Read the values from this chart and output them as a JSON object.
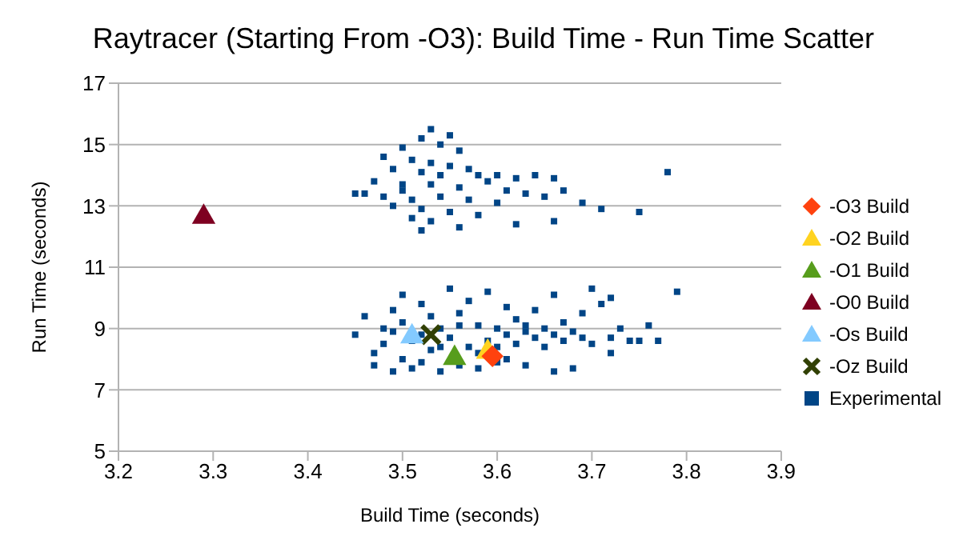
{
  "chart_data": {
    "type": "scatter",
    "title": "Raytracer (Starting From -O3): Build Time - Run Time Scatter",
    "xlabel": "Build Time (seconds)",
    "ylabel": "Run Time (seconds)",
    "xlim": [
      3.2,
      3.9
    ],
    "xticks": [
      3.2,
      3.3,
      3.4,
      3.5,
      3.6,
      3.7,
      3.8,
      3.9
    ],
    "ylim": [
      5,
      17
    ],
    "yticks": [
      5,
      7,
      9,
      11,
      13,
      15,
      17
    ],
    "grid": "y",
    "legend": "right",
    "series": [
      {
        "name": "-O3 Build",
        "color": "#ff420e",
        "marker": "diamond",
        "x": [
          3.595
        ],
        "values": [
          8.1
        ]
      },
      {
        "name": "-O2 Build",
        "color": "#ffd320",
        "marker": "triangle",
        "x": [
          3.59
        ],
        "values": [
          8.3
        ]
      },
      {
        "name": "-O1 Build",
        "color": "#579d1c",
        "marker": "triangle",
        "x": [
          3.555
        ],
        "values": [
          8.1
        ]
      },
      {
        "name": "-O0 Build",
        "color": "#7e0021",
        "marker": "triangle",
        "x": [
          3.29
        ],
        "values": [
          12.7
        ]
      },
      {
        "name": "-Os Build",
        "color": "#83caff",
        "marker": "triangle",
        "x": [
          3.51
        ],
        "values": [
          8.8
        ]
      },
      {
        "name": "-Oz Build",
        "color": "#314004",
        "marker": "cross",
        "x": [
          3.53
        ],
        "values": [
          8.8
        ]
      },
      {
        "name": "Experimental",
        "color": "#004586",
        "marker": "square",
        "x": [
          3.53,
          3.55,
          3.52,
          3.54,
          3.5,
          3.56,
          3.48,
          3.51,
          3.53,
          3.55,
          3.57,
          3.49,
          3.52,
          3.54,
          3.58,
          3.6,
          3.62,
          3.64,
          3.66,
          3.47,
          3.5,
          3.53,
          3.56,
          3.59,
          3.61,
          3.63,
          3.65,
          3.67,
          3.69,
          3.46,
          3.48,
          3.51,
          3.54,
          3.57,
          3.6,
          3.49,
          3.52,
          3.55,
          3.58,
          3.53,
          3.56,
          3.62,
          3.66,
          3.52,
          3.71,
          3.75,
          3.78,
          3.45,
          3.51,
          3.5,
          3.45,
          3.46,
          3.47,
          3.47,
          3.48,
          3.48,
          3.49,
          3.49,
          3.5,
          3.5,
          3.51,
          3.51,
          3.52,
          3.52,
          3.53,
          3.53,
          3.54,
          3.54,
          3.55,
          3.55,
          3.56,
          3.56,
          3.57,
          3.57,
          3.58,
          3.58,
          3.59,
          3.59,
          3.6,
          3.6,
          3.61,
          3.61,
          3.62,
          3.62,
          3.63,
          3.63,
          3.64,
          3.64,
          3.65,
          3.65,
          3.66,
          3.66,
          3.67,
          3.67,
          3.68,
          3.68,
          3.69,
          3.69,
          3.7,
          3.7,
          3.71,
          3.72,
          3.72,
          3.73,
          3.74,
          3.75,
          3.76,
          3.77,
          3.79,
          3.72,
          3.58,
          3.6,
          3.54,
          3.52,
          3.49,
          3.56,
          3.63,
          3.66,
          3.5,
          3.61
        ],
        "values": [
          15.5,
          15.3,
          15.2,
          15.0,
          14.9,
          14.8,
          14.6,
          14.5,
          14.4,
          14.3,
          14.2,
          14.2,
          14.1,
          14.0,
          14.0,
          14.0,
          13.9,
          14.0,
          13.9,
          13.8,
          13.7,
          13.7,
          13.6,
          13.8,
          13.5,
          13.4,
          13.3,
          13.5,
          13.1,
          13.4,
          13.3,
          13.2,
          13.3,
          13.2,
          13.1,
          13.0,
          12.9,
          12.8,
          12.7,
          12.5,
          12.3,
          12.4,
          12.5,
          12.2,
          12.9,
          12.8,
          14.1,
          13.4,
          12.6,
          13.5,
          8.8,
          9.4,
          8.2,
          7.8,
          9.0,
          8.5,
          7.6,
          9.6,
          8.0,
          9.2,
          7.7,
          8.6,
          9.8,
          7.9,
          9.4,
          8.3,
          7.6,
          9.0,
          10.3,
          8.7,
          7.8,
          9.5,
          8.4,
          9.9,
          7.7,
          9.1,
          8.6,
          10.2,
          9.0,
          7.9,
          8.8,
          9.7,
          8.5,
          9.3,
          8.9,
          7.8,
          8.7,
          9.6,
          8.4,
          9.0,
          8.8,
          10.1,
          8.6,
          9.2,
          8.9,
          7.7,
          8.7,
          9.5,
          10.3,
          8.5,
          9.8,
          8.7,
          8.2,
          9.0,
          8.6,
          8.6,
          9.1,
          8.6,
          10.2,
          10.0,
          8.2,
          8.4,
          8.4,
          8.8,
          8.9,
          9.1,
          9.1,
          7.6,
          10.1,
          8.0
        ]
      }
    ]
  }
}
